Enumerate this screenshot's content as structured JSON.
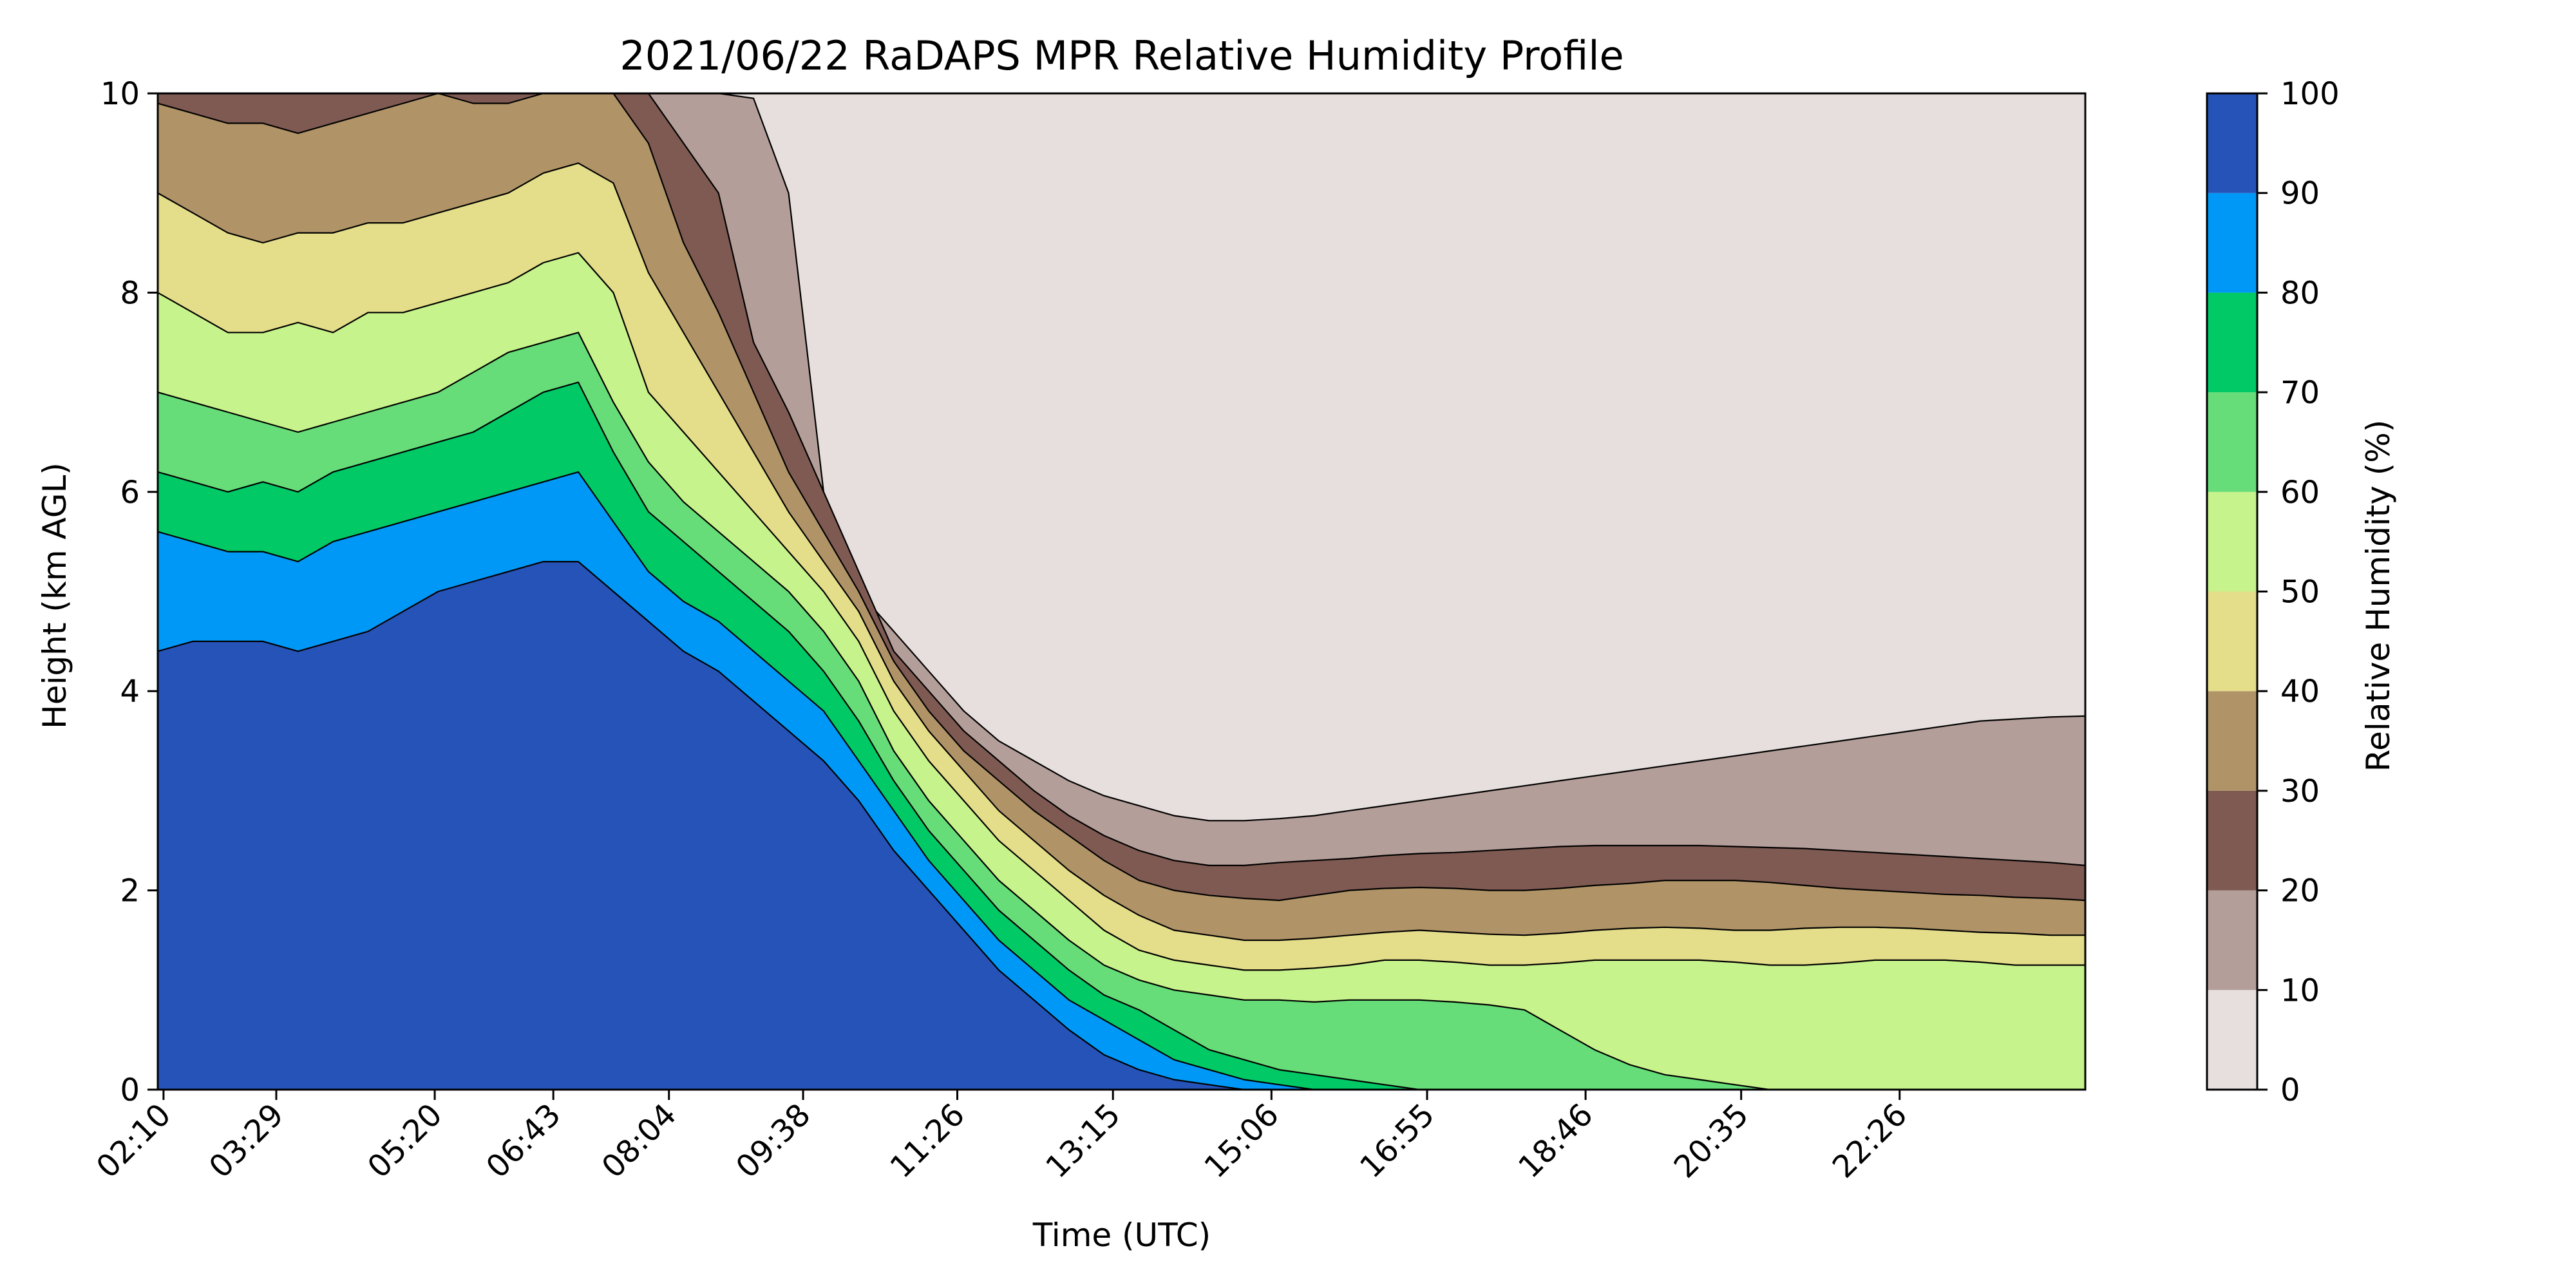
{
  "chart_data": {
    "type": "heatmap",
    "subtype": "filled-contour",
    "title": "2021/06/22 RaDAPS MPR Relative Humidity Profile",
    "xlabel": "Time (UTC)",
    "ylabel": "Height (km AGL)",
    "colorbar_label": "Relative Humidity (%)",
    "xlim_hours": [
      2.1,
      24.6
    ],
    "ylim": [
      0,
      10
    ],
    "x_ticks": [
      {
        "label": "02:10",
        "hours": 2.167
      },
      {
        "label": "03:29",
        "hours": 3.483
      },
      {
        "label": "05:20",
        "hours": 5.333
      },
      {
        "label": "06:43",
        "hours": 6.717
      },
      {
        "label": "08:04",
        "hours": 8.067
      },
      {
        "label": "09:38",
        "hours": 9.633
      },
      {
        "label": "11:26",
        "hours": 11.433
      },
      {
        "label": "13:15",
        "hours": 13.25
      },
      {
        "label": "15:06",
        "hours": 15.1
      },
      {
        "label": "16:55",
        "hours": 16.917
      },
      {
        "label": "18:46",
        "hours": 18.767
      },
      {
        "label": "20:35",
        "hours": 20.583
      },
      {
        "label": "22:26",
        "hours": 22.433
      }
    ],
    "y_ticks": [
      "0",
      "2",
      "4",
      "6",
      "8",
      "10"
    ],
    "y_tick_values": [
      0,
      2,
      4,
      6,
      8,
      10
    ],
    "colorbar_ticks": [
      "0",
      "10",
      "20",
      "30",
      "40",
      "50",
      "60",
      "70",
      "80",
      "90",
      "100"
    ],
    "levels": [
      0,
      10,
      20,
      30,
      40,
      50,
      60,
      70,
      80,
      90,
      100
    ],
    "colors": [
      "#e6dfdd",
      "#b49e99",
      "#7e5a52",
      "#b09467",
      "#e4dd8a",
      "#c7f38c",
      "#66dd78",
      "#00c966",
      "#0098f7",
      "#2653b7"
    ],
    "contour_boundaries": [
      {
        "rh": 10,
        "heights": [
          10.0,
          10.0,
          10.0,
          10.0,
          10.0,
          10.0,
          10.0,
          10.0,
          10.0,
          10.0,
          10.0,
          10.0,
          10.0,
          10.0,
          10.0,
          10.0,
          10.0,
          9.95,
          9.0,
          6.0,
          5.0,
          4.6,
          4.2,
          3.8,
          3.5,
          3.3,
          3.1,
          2.95,
          2.85,
          2.75,
          2.7,
          2.7,
          2.72,
          2.75,
          2.8,
          2.85,
          2.9,
          2.95,
          3.0,
          3.05,
          3.1,
          3.15,
          3.2,
          3.25,
          3.3,
          3.35,
          3.4,
          3.45,
          3.5,
          3.55,
          3.6,
          3.65,
          3.7,
          3.72,
          3.74,
          3.75
        ]
      },
      {
        "rh": 20,
        "heights": [
          10.0,
          10.0,
          10.0,
          10.0,
          10.0,
          10.0,
          10.0,
          10.0,
          10.0,
          10.0,
          10.0,
          10.0,
          10.0,
          10.0,
          10.0,
          9.5,
          9.0,
          7.5,
          6.8,
          6.0,
          5.2,
          4.4,
          4.0,
          3.6,
          3.3,
          3.0,
          2.75,
          2.55,
          2.4,
          2.3,
          2.25,
          2.25,
          2.28,
          2.3,
          2.32,
          2.35,
          2.37,
          2.38,
          2.4,
          2.42,
          2.44,
          2.45,
          2.45,
          2.45,
          2.45,
          2.44,
          2.43,
          2.42,
          2.4,
          2.38,
          2.36,
          2.34,
          2.32,
          2.3,
          2.28,
          2.25
        ]
      },
      {
        "rh": 30,
        "heights": [
          9.9,
          9.8,
          9.7,
          9.7,
          9.6,
          9.7,
          9.8,
          9.9,
          10.0,
          9.9,
          9.9,
          10.0,
          10.0,
          10.0,
          9.5,
          8.5,
          7.8,
          7.0,
          6.2,
          5.6,
          5.0,
          4.3,
          3.8,
          3.4,
          3.1,
          2.8,
          2.55,
          2.3,
          2.1,
          2.0,
          1.95,
          1.92,
          1.9,
          1.95,
          2.0,
          2.02,
          2.03,
          2.02,
          2.0,
          2.0,
          2.02,
          2.05,
          2.07,
          2.1,
          2.1,
          2.1,
          2.08,
          2.05,
          2.02,
          2.0,
          1.98,
          1.96,
          1.95,
          1.93,
          1.92,
          1.9
        ]
      },
      {
        "rh": 40,
        "heights": [
          9.0,
          8.8,
          8.6,
          8.5,
          8.6,
          8.6,
          8.7,
          8.7,
          8.8,
          8.9,
          9.0,
          9.2,
          9.3,
          9.1,
          8.2,
          7.6,
          7.0,
          6.4,
          5.8,
          5.3,
          4.8,
          4.1,
          3.6,
          3.2,
          2.8,
          2.5,
          2.2,
          1.95,
          1.75,
          1.6,
          1.55,
          1.5,
          1.5,
          1.52,
          1.55,
          1.58,
          1.6,
          1.58,
          1.56,
          1.55,
          1.57,
          1.6,
          1.62,
          1.63,
          1.62,
          1.6,
          1.6,
          1.62,
          1.63,
          1.63,
          1.62,
          1.6,
          1.58,
          1.57,
          1.55,
          1.55
        ]
      },
      {
        "rh": 50,
        "heights": [
          8.0,
          7.8,
          7.6,
          7.6,
          7.7,
          7.6,
          7.8,
          7.8,
          7.9,
          8.0,
          8.1,
          8.3,
          8.4,
          8.0,
          7.0,
          6.6,
          6.2,
          5.8,
          5.4,
          5.0,
          4.5,
          3.8,
          3.3,
          2.9,
          2.5,
          2.2,
          1.9,
          1.6,
          1.4,
          1.3,
          1.25,
          1.2,
          1.2,
          1.22,
          1.25,
          1.3,
          1.3,
          1.28,
          1.25,
          1.25,
          1.27,
          1.3,
          1.3,
          1.3,
          1.3,
          1.28,
          1.25,
          1.25,
          1.27,
          1.3,
          1.3,
          1.3,
          1.28,
          1.25,
          1.25,
          1.25
        ]
      },
      {
        "rh": 60,
        "heights": [
          7.0,
          6.9,
          6.8,
          6.7,
          6.6,
          6.7,
          6.8,
          6.9,
          7.0,
          7.2,
          7.4,
          7.5,
          7.6,
          6.9,
          6.3,
          5.9,
          5.6,
          5.3,
          5.0,
          4.6,
          4.1,
          3.4,
          2.9,
          2.5,
          2.1,
          1.8,
          1.5,
          1.25,
          1.1,
          1.0,
          0.95,
          0.9,
          0.9,
          0.88,
          0.9,
          0.9,
          0.9,
          0.88,
          0.85,
          0.8,
          0.6,
          0.4,
          0.25,
          0.15,
          0.1,
          0.05,
          0.0,
          0.0,
          0.0,
          0.0,
          0.0,
          0.0,
          0.0,
          0.0,
          0.0,
          0.0
        ]
      },
      {
        "rh": 70,
        "heights": [
          6.2,
          6.1,
          6.0,
          6.1,
          6.0,
          6.2,
          6.3,
          6.4,
          6.5,
          6.6,
          6.8,
          7.0,
          7.1,
          6.4,
          5.8,
          5.5,
          5.2,
          4.9,
          4.6,
          4.2,
          3.7,
          3.1,
          2.6,
          2.2,
          1.8,
          1.5,
          1.2,
          0.95,
          0.8,
          0.6,
          0.4,
          0.3,
          0.2,
          0.15,
          0.1,
          0.05,
          0.0,
          0.0,
          0.0,
          0.0,
          0.0,
          0.0,
          0.0,
          0.0,
          0.0,
          0.0,
          0.0,
          0.0,
          0.0,
          0.0,
          0.0,
          0.0,
          0.0,
          0.0,
          0.0,
          0.0
        ]
      },
      {
        "rh": 80,
        "heights": [
          5.6,
          5.5,
          5.4,
          5.4,
          5.3,
          5.5,
          5.6,
          5.7,
          5.8,
          5.9,
          6.0,
          6.1,
          6.2,
          5.7,
          5.2,
          4.9,
          4.7,
          4.4,
          4.1,
          3.8,
          3.3,
          2.8,
          2.3,
          1.9,
          1.5,
          1.2,
          0.9,
          0.7,
          0.5,
          0.3,
          0.2,
          0.1,
          0.05,
          0.0,
          0.0,
          0.0,
          0.0,
          0.0,
          0.0,
          0.0,
          0.0,
          0.0,
          0.0,
          0.0,
          0.0,
          0.0,
          0.0,
          0.0,
          0.0,
          0.0,
          0.0,
          0.0,
          0.0,
          0.0,
          0.0,
          0.0
        ]
      },
      {
        "rh": 90,
        "heights": [
          4.4,
          4.5,
          4.5,
          4.5,
          4.4,
          4.5,
          4.6,
          4.8,
          5.0,
          5.1,
          5.2,
          5.3,
          5.3,
          5.0,
          4.7,
          4.4,
          4.2,
          3.9,
          3.6,
          3.3,
          2.9,
          2.4,
          2.0,
          1.6,
          1.2,
          0.9,
          0.6,
          0.35,
          0.2,
          0.1,
          0.05,
          0.0,
          0.0,
          0.0,
          0.0,
          0.0,
          0.0,
          0.0,
          0.0,
          0.0,
          0.0,
          0.0,
          0.0,
          0.0,
          0.0,
          0.0,
          0.0,
          0.0,
          0.0,
          0.0,
          0.0,
          0.0,
          0.0,
          0.0,
          0.0,
          0.0
        ]
      }
    ],
    "grid": false
  }
}
